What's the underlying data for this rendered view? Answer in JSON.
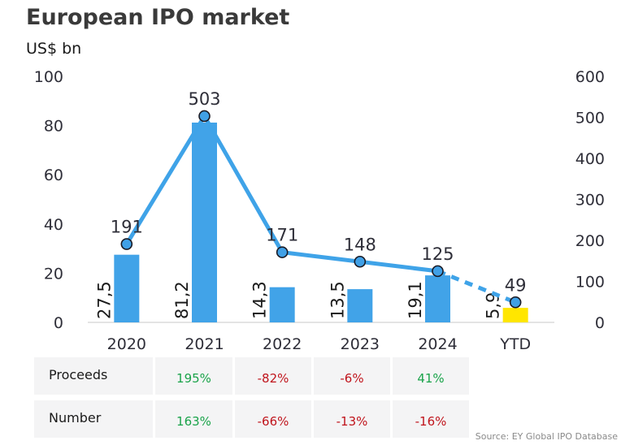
{
  "chart_data": {
    "type": "bar",
    "title": "European IPO market",
    "ylabel": "US$ bn",
    "categories": [
      "2020",
      "2021",
      "2022",
      "2023",
      "2024",
      "YTD"
    ],
    "series": [
      {
        "type": "bar",
        "axis": "left",
        "values": [
          27.5,
          81.2,
          14.3,
          13.5,
          19.1,
          5.9
        ],
        "labels": [
          "27,5",
          "81,2",
          "14,3",
          "13,5",
          "19,1",
          "5,9"
        ],
        "colors": [
          "#41a3e8",
          "#41a3e8",
          "#41a3e8",
          "#41a3e8",
          "#41a3e8",
          "#ffe600"
        ]
      },
      {
        "type": "line",
        "axis": "right",
        "values": [
          191,
          503,
          171,
          148,
          125,
          49
        ],
        "color": "#3fa3e8"
      }
    ],
    "ylim": [
      0,
      100
    ],
    "yticks": [
      "0",
      "20",
      "40",
      "60",
      "80",
      "100"
    ],
    "y2lim": [
      0,
      600
    ],
    "y2ticks": [
      "0",
      "100",
      "200",
      "300",
      "400",
      "500",
      "600"
    ],
    "grid": false
  },
  "table": {
    "rows": [
      {
        "label": "Proceeds",
        "values": [
          "195%",
          "-82%",
          "-6%",
          "41%"
        ]
      },
      {
        "label": "Number",
        "values": [
          "163%",
          "-66%",
          "-13%",
          "-16%"
        ]
      }
    ],
    "positive_color": "#1aa34a",
    "negative_color": "#c0141c"
  },
  "source": "Source: EY Global IPO Database"
}
